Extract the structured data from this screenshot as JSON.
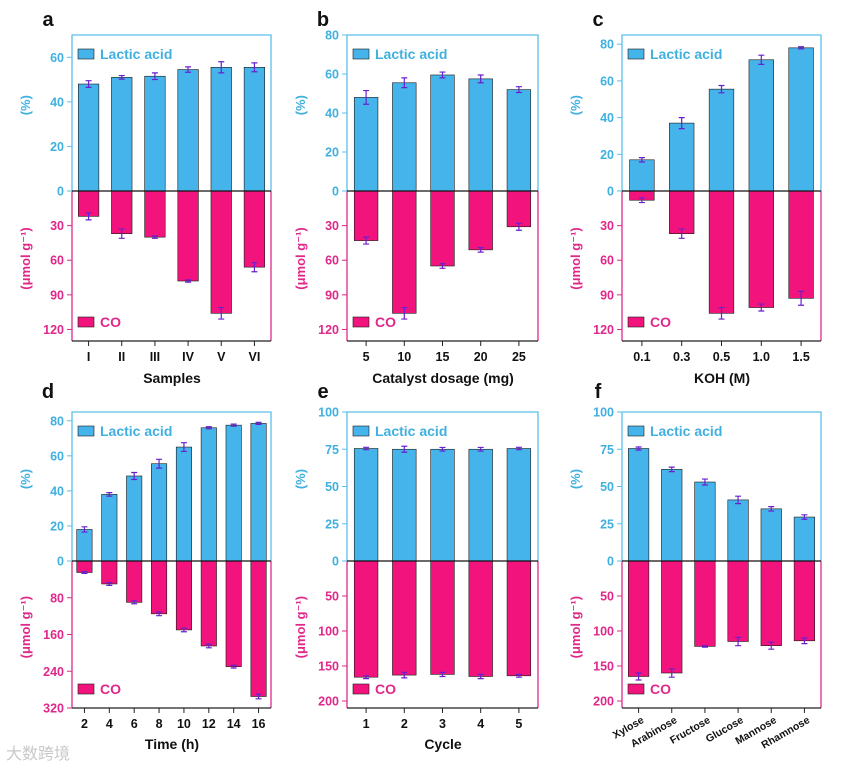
{
  "watermark": "大数跨境",
  "colors": {
    "lactic": "#45b4ea",
    "co": "#f2137c",
    "frame_top": "#5bc0ea",
    "frame_bottom": "#e0288a",
    "error": "#6a1fd1",
    "text_top": "#3fb0e0",
    "text_bottom": "#e0288a"
  },
  "chart_data": [
    {
      "type": "bar",
      "panel_label": "a",
      "title": "",
      "xlabel": "Samples",
      "ylabel_top": "(%)",
      "ylabel_bottom": "(μmol g⁻¹)",
      "legend_top": "Lactic acid",
      "legend_bottom": "CO",
      "categories": [
        "I",
        "II",
        "III",
        "IV",
        "V",
        "VI"
      ],
      "top_ylim": [
        0,
        70
      ],
      "top_ticks": [
        "0",
        "20",
        "40",
        "60"
      ],
      "top_tick_values": [
        0,
        20,
        40,
        60
      ],
      "bottom_ylim": [
        0,
        130
      ],
      "bottom_ticks": [
        "30",
        "60",
        "90",
        "120"
      ],
      "bottom_tick_values": [
        30,
        60,
        90,
        120
      ],
      "series": [
        {
          "name": "Lactic acid",
          "values": [
            48,
            51,
            51.5,
            54.5,
            55.5,
            55.5
          ],
          "errors": [
            1.5,
            0.8,
            1.5,
            1.2,
            2.5,
            2.0
          ]
        },
        {
          "name": "CO",
          "values": [
            22,
            37,
            40,
            78,
            106,
            66
          ],
          "errors": [
            3,
            4,
            1,
            1,
            5,
            4
          ]
        }
      ]
    },
    {
      "type": "bar",
      "panel_label": "b",
      "title": "",
      "xlabel": "Catalyst dosage (mg)",
      "ylabel_top": "(%)",
      "ylabel_bottom": "(μmol g⁻¹)",
      "legend_top": "Lactic acid",
      "legend_bottom": "CO",
      "categories": [
        "5",
        "10",
        "15",
        "20",
        "25"
      ],
      "top_ylim": [
        0,
        80
      ],
      "top_ticks": [
        "0",
        "20",
        "40",
        "60",
        "80"
      ],
      "top_tick_values": [
        0,
        20,
        40,
        60,
        80
      ],
      "bottom_ylim": [
        0,
        130
      ],
      "bottom_ticks": [
        "30",
        "60",
        "90",
        "120"
      ],
      "bottom_tick_values": [
        30,
        60,
        90,
        120
      ],
      "series": [
        {
          "name": "Lactic acid",
          "values": [
            48,
            55.5,
            59.5,
            57.5,
            52
          ],
          "errors": [
            3.5,
            2.5,
            1.5,
            2.0,
            1.5
          ]
        },
        {
          "name": "CO",
          "values": [
            43,
            106,
            65,
            51,
            31
          ],
          "errors": [
            3,
            5,
            2,
            2,
            3
          ]
        }
      ]
    },
    {
      "type": "bar",
      "panel_label": "c",
      "title": "",
      "xlabel": "KOH (M)",
      "ylabel_top": "(%)",
      "ylabel_bottom": "(μmol g⁻¹)",
      "legend_top": "Lactic acid",
      "legend_bottom": "CO",
      "categories": [
        "0.1",
        "0.3",
        "0.5",
        "1.0",
        "1.5"
      ],
      "top_ylim": [
        0,
        85
      ],
      "top_ticks": [
        "0",
        "20",
        "40",
        "60",
        "80"
      ],
      "top_tick_values": [
        0,
        20,
        40,
        60,
        80
      ],
      "bottom_ylim": [
        0,
        130
      ],
      "bottom_ticks": [
        "30",
        "60",
        "90",
        "120"
      ],
      "bottom_tick_values": [
        30,
        60,
        90,
        120
      ],
      "series": [
        {
          "name": "Lactic acid",
          "values": [
            17,
            37,
            55.5,
            71.5,
            78
          ],
          "errors": [
            1.2,
            3.0,
            2.0,
            2.5,
            0.6
          ]
        },
        {
          "name": "CO",
          "values": [
            8,
            37,
            106,
            101,
            93
          ],
          "errors": [
            2,
            4,
            5,
            3,
            6
          ]
        }
      ]
    },
    {
      "type": "bar",
      "panel_label": "d",
      "title": "",
      "xlabel": "Time (h)",
      "ylabel_top": "(%)",
      "ylabel_bottom": "(μmol g⁻¹)",
      "legend_top": "Lactic acid",
      "legend_bottom": "CO",
      "categories": [
        "2",
        "4",
        "6",
        "8",
        "10",
        "12",
        "14",
        "16"
      ],
      "top_ylim": [
        0,
        85
      ],
      "top_ticks": [
        "0",
        "20",
        "40",
        "60",
        "80"
      ],
      "top_tick_values": [
        0,
        20,
        40,
        60,
        80
      ],
      "bottom_ylim": [
        0,
        320
      ],
      "bottom_ticks": [
        "80",
        "160",
        "240",
        "320"
      ],
      "bottom_tick_values": [
        80,
        160,
        240,
        320
      ],
      "series": [
        {
          "name": "Lactic acid",
          "values": [
            18,
            38,
            48.5,
            55.5,
            65,
            76,
            77.5,
            78.5
          ],
          "errors": [
            1.5,
            1.0,
            2.0,
            2.5,
            2.5,
            0.6,
            0.6,
            0.6
          ]
        },
        {
          "name": "CO",
          "values": [
            25,
            50,
            90,
            115,
            150,
            185,
            230,
            295
          ],
          "errors": [
            2,
            3,
            3,
            4,
            4,
            4,
            3,
            5
          ]
        }
      ]
    },
    {
      "type": "bar",
      "panel_label": "e",
      "title": "",
      "xlabel": "Cycle",
      "ylabel_top": "(%)",
      "ylabel_bottom": "(μmol g⁻¹)",
      "legend_top": "Lactic acid",
      "legend_bottom": "CO",
      "categories": [
        "1",
        "2",
        "3",
        "4",
        "5"
      ],
      "top_ylim": [
        0,
        100
      ],
      "top_ticks": [
        "0",
        "25",
        "50",
        "75",
        "100"
      ],
      "top_tick_values": [
        0,
        25,
        50,
        75,
        100
      ],
      "bottom_ylim": [
        0,
        210
      ],
      "bottom_ticks": [
        "50",
        "100",
        "150",
        "200"
      ],
      "bottom_tick_values": [
        50,
        100,
        150,
        200
      ],
      "series": [
        {
          "name": "Lactic acid",
          "values": [
            75.5,
            75,
            75,
            75,
            75.5
          ],
          "errors": [
            0.8,
            2.0,
            1.2,
            1.2,
            0.8
          ]
        },
        {
          "name": "CO",
          "values": [
            166,
            163,
            162,
            165,
            164
          ],
          "errors": [
            2,
            4,
            3,
            3,
            2
          ]
        }
      ]
    },
    {
      "type": "bar",
      "panel_label": "f",
      "title": "",
      "xlabel": "",
      "ylabel_top": "(%)",
      "ylabel_bottom": "(μmol g⁻¹)",
      "legend_top": "Lactic acid",
      "legend_bottom": "CO",
      "categories": [
        "Xylose",
        "Arabinose",
        "Fructose",
        "Glucose",
        "Mannose",
        "Rhamnose"
      ],
      "top_ylim": [
        0,
        100
      ],
      "top_ticks": [
        "0",
        "25",
        "50",
        "75",
        "100"
      ],
      "top_tick_values": [
        0,
        25,
        50,
        75,
        100
      ],
      "bottom_ylim": [
        0,
        210
      ],
      "bottom_ticks": [
        "50",
        "100",
        "150",
        "200"
      ],
      "bottom_tick_values": [
        50,
        100,
        150,
        200
      ],
      "series": [
        {
          "name": "Lactic acid",
          "values": [
            75.5,
            61.5,
            53,
            41,
            35,
            29.5
          ],
          "errors": [
            1.0,
            1.5,
            2.0,
            2.5,
            1.5,
            1.5
          ]
        },
        {
          "name": "CO",
          "values": [
            165,
            160,
            122,
            115,
            121,
            114
          ],
          "errors": [
            5,
            6,
            1,
            6,
            5,
            4
          ]
        }
      ]
    }
  ]
}
